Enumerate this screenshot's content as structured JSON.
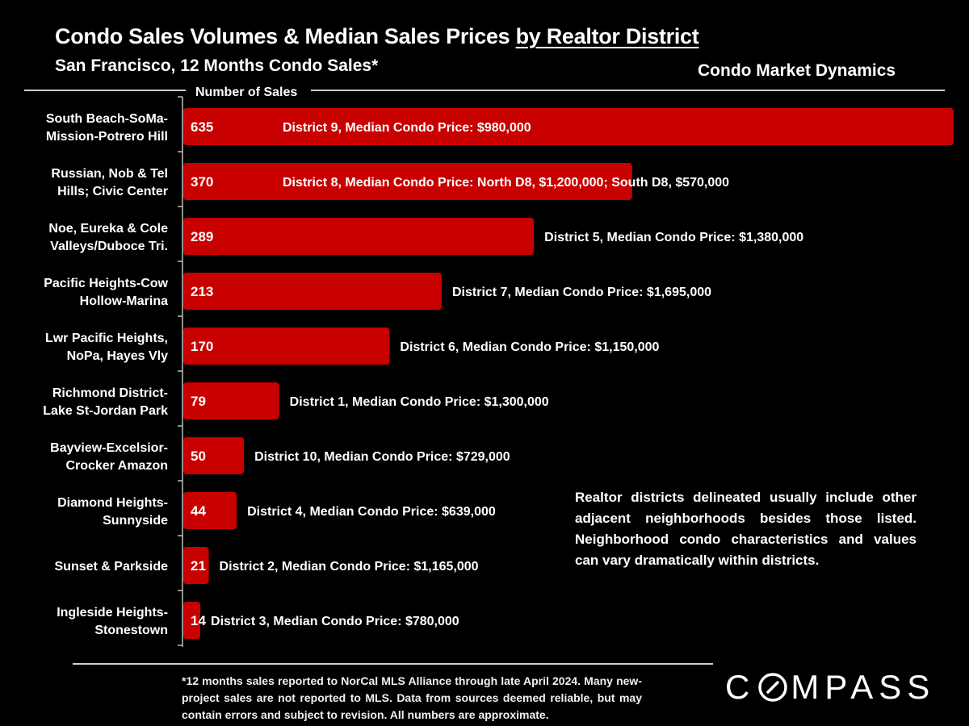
{
  "header": {
    "title_main": "Condo Sales Volumes & Median Sales Prices ",
    "title_underlined": "by Realtor District",
    "subtitle": "San Francisco, 12 Months Condo Sales*",
    "section_label": "Condo Market Dynamics"
  },
  "note": "Realtor districts delineated usually include other adjacent neighborhoods besides those listed. Neighborhood condo characteristics and values can vary dramatically within districts.",
  "footnote": "*12 months sales reported to NorCal MLS Alliance through late April 2024. Many new-project sales are not reported to MLS. Data from sources deemed reliable, but may contain errors and subject to revision. All numbers are approximate.",
  "brand": {
    "logo_left": "C",
    "logo_right": "MPASS",
    "logo_icon": "compass-o-icon"
  },
  "colors": {
    "bar": "#c80000",
    "background": "#000000",
    "text": "#ffffff"
  },
  "chart_data": {
    "type": "bar",
    "orientation": "horizontal",
    "title": "Condo Sales Volumes & Median Sales Prices by Realtor District",
    "subtitle": "San Francisco, 12 Months Condo Sales*",
    "xlabel": "Number of Sales",
    "ylabel": "",
    "xlim": [
      0,
      635
    ],
    "grid": false,
    "legend": "none",
    "categories": [
      [
        "South Beach-SoMa-",
        "Mission-Potrero Hill"
      ],
      [
        "Russian, Nob & Tel",
        "Hills; Civic Center"
      ],
      [
        "Noe, Eureka & Cole",
        "Valleys/Duboce Tri."
      ],
      [
        "Pacific Heights-Cow",
        "Hollow-Marina"
      ],
      [
        "Lwr Pacific Heights,",
        "NoPa, Hayes Vly"
      ],
      [
        "Richmond District-",
        "Lake St-Jordan Park"
      ],
      [
        "Bayview-Excelsior-",
        "Crocker Amazon"
      ],
      [
        "Diamond Heights-",
        "Sunnyside"
      ],
      [
        "Sunset & Parkside"
      ],
      [
        "Ingleside Heights-",
        "Stonestown"
      ]
    ],
    "values": [
      635,
      370,
      289,
      213,
      170,
      79,
      50,
      44,
      21,
      14
    ],
    "value_labels": [
      "635",
      "370",
      "289",
      "213",
      "170",
      "79",
      "50",
      "44",
      "21",
      "14"
    ],
    "annotations": [
      "District 9, Median Condo Price:  $980,000",
      "District 8, Median Condo Price:  North D8, $1,200,000; South D8, $570,000",
      "District 5, Median Condo Price:  $1,380,000",
      "District 7, Median Condo Price:  $1,695,000",
      "District 6, Median Condo Price:  $1,150,000",
      "District 1, Median Condo Price:  $1,300,000",
      "District 10, Median Condo Price:  $729,000",
      "District 4, Median Condo Price:  $639,000",
      "District 2, Median Condo Price:  $1,165,000",
      "District 3, Median Condo Price:  $780,000"
    ],
    "annotation_inside_bar": [
      true,
      true,
      false,
      false,
      false,
      false,
      false,
      false,
      false,
      false
    ]
  }
}
